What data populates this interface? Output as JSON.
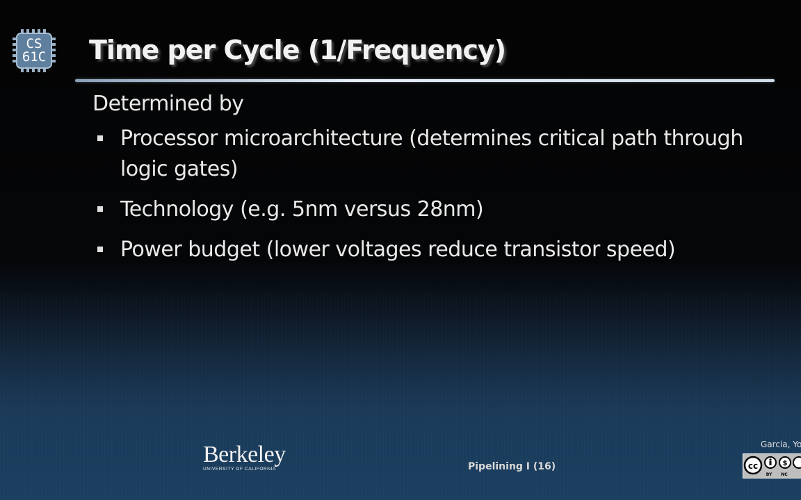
{
  "logo": {
    "line1": "CS",
    "line2": "61C",
    "icon": "chip-icon"
  },
  "title": "Time per Cycle (1/Frequency)",
  "lead": "Determined by",
  "bullets": [
    "Processor microarchitecture (determines critical path through logic gates)",
    "Technology (e.g. 5nm versus 28nm)",
    "Power budget (lower voltages reduce transistor speed)"
  ],
  "footer": {
    "berkeley_wordmark": "Berkeley",
    "berkeley_sub": "UNIVERSITY OF CALIFORNIA",
    "center_label": "Pipelining I (16)",
    "author": "Garcia, Yo",
    "license_icon": "creative-commons-by-nc-sa-icon",
    "license_labels": [
      "BY",
      "NC"
    ]
  },
  "colors": {
    "background_top": "#040404",
    "background_bottom": "#1b3f60",
    "text": "#e9e9e9",
    "chip": "#6f8fb0"
  }
}
